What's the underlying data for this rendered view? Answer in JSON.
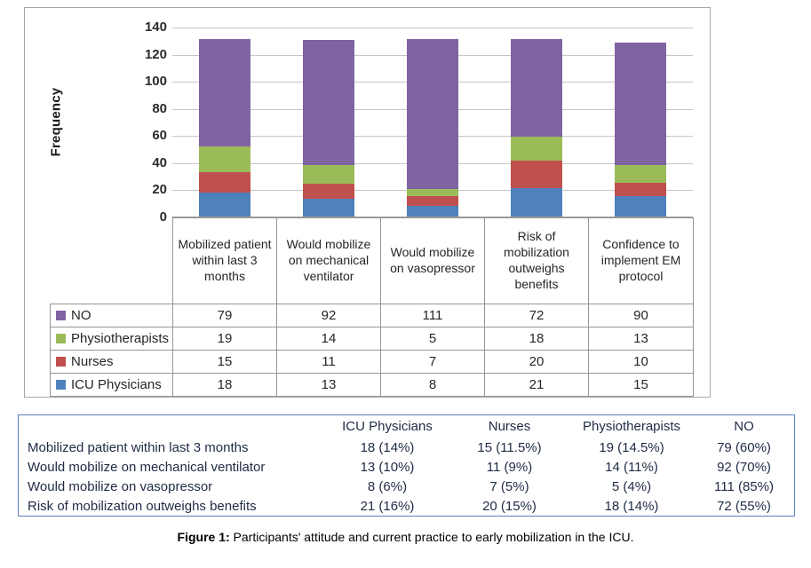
{
  "figure": {
    "caption_prefix": "Figure 1:",
    "caption_text": " Participants' attitude and current practice to early mobilization in the ICU."
  },
  "chart_data": {
    "type": "bar",
    "stacked": true,
    "title": "",
    "xlabel": "",
    "ylabel": "Frequency",
    "ylim": [
      0,
      140
    ],
    "y_ticks": [
      0,
      20,
      40,
      60,
      80,
      100,
      120,
      140
    ],
    "grid": true,
    "legend_position": "left-of-data-table",
    "categories": [
      "Mobilized patient within last 3 months",
      "Would mobilize on mechanical ventilator",
      "Would mobilize on vasopressor",
      "Risk of mobilization outweighs benefits",
      "Confidence to implement EM protocol"
    ],
    "series": [
      {
        "name": "ICU Physicians",
        "color": "#4F81BD",
        "values": [
          18,
          13,
          8,
          21,
          15
        ]
      },
      {
        "name": "Nurses",
        "color": "#C0504D",
        "values": [
          15,
          11,
          7,
          20,
          10
        ]
      },
      {
        "name": "Physiotherapists",
        "color": "#9BBB59",
        "values": [
          19,
          14,
          5,
          18,
          13
        ]
      },
      {
        "name": "NO",
        "color": "#8064A2",
        "values": [
          79,
          92,
          111,
          72,
          90
        ]
      }
    ],
    "data_table_row_order": [
      "NO",
      "Physiotherapists",
      "Nurses",
      "ICU Physicians"
    ]
  },
  "summary_table": {
    "column_headers": [
      "ICU Physicians",
      "Nurses",
      "Physiotherapists",
      "NO"
    ],
    "rows": [
      {
        "label": "Mobilized patient within last 3 months",
        "values": [
          "18 (14%)",
          "15 (11.5%)",
          "19 (14.5%)",
          "79 (60%)"
        ]
      },
      {
        "label": "Would mobilize on mechanical ventilator",
        "values": [
          "13 (10%)",
          "11 (9%)",
          "14 (11%)",
          "92 (70%)"
        ]
      },
      {
        "label": "Would mobilize on vasopressor",
        "values": [
          "8 (6%)",
          "7 (5%)",
          "5 (4%)",
          "111 (85%)"
        ]
      },
      {
        "label": "Risk of mobilization outweighs benefits",
        "values": [
          "21 (16%)",
          "20 (15%)",
          "18 (14%)",
          "72 (55%)"
        ]
      }
    ]
  },
  "colors": {
    "icu_physicians": "#4F81BD",
    "nurses": "#C0504D",
    "physiotherapists": "#9BBB59",
    "no": "#8064A2",
    "gridline": "#C6C6C6",
    "chart_border": "#A6A6A6",
    "table_border": "#969696",
    "summary_border": "#5B7FB9"
  }
}
